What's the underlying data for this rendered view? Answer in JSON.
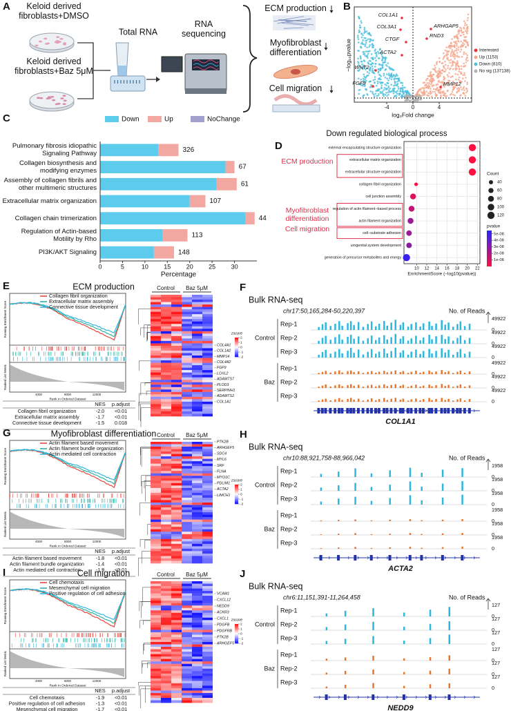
{
  "chart_data": [
    {
      "type": "bar",
      "orientation": "horizontal",
      "stacked": true,
      "panel_label": "C",
      "categories": [
        "Pulmonary fibrosis idiopathic Signaling Pathway",
        "Collagen biosynthesis and modifying enzymes",
        "Assembly of collagen fibrils and other multimeric structures",
        "Extracellular matrix organization",
        "Collagen chain trimerization",
        "Regulation of Actin-based Motility by Rho",
        "PI3K/AKT Signaling"
      ],
      "series": [
        {
          "name": "Down",
          "color": "#5ccbec",
          "values": [
            13,
            28,
            26,
            20,
            32.5,
            14,
            12
          ]
        },
        {
          "name": "Up",
          "color": "#f2a7a0",
          "values": [
            4.5,
            2,
            4.5,
            3.5,
            2,
            5.5,
            4.5
          ]
        },
        {
          "name": "NoChange",
          "color": "#a29fcc",
          "values": [
            0,
            0,
            0,
            0,
            0,
            0,
            0
          ]
        }
      ],
      "counts": [
        326,
        67,
        61,
        107,
        44,
        113,
        148
      ],
      "xlabel": "Percentage",
      "xlim": [
        0,
        35
      ],
      "xticks": [
        0,
        5,
        10,
        15,
        20,
        25,
        30
      ]
    },
    {
      "type": "dot",
      "panel_label": "D",
      "title": "Down regulated biological process",
      "categories": [
        "external encapsulating structure organization",
        "extracellular matrix organization",
        "extracellular structure organization",
        "collagen fibril organization",
        "cell junction assembly",
        "regulation of actin filament−based process",
        "actin filament organization",
        "cell−substrate adhesion",
        "urogenital system development",
        "generation of precursor metabolites and energy"
      ],
      "values": [
        21,
        21,
        21,
        9.9,
        9.3,
        9,
        8.8,
        8.5,
        8.5,
        8
      ],
      "sizes": [
        120,
        120,
        120,
        30,
        80,
        80,
        80,
        70,
        70,
        120
      ],
      "pvalues": [
        1e-10,
        1e-10,
        1e-10,
        1e-09,
        8e-09,
        1.5e-08,
        2.5e-08,
        2.5e-08,
        3e-08,
        5e-08
      ],
      "xlabel": "EnrichmentScore (−log10(pvalue))",
      "xlim": [
        7.5,
        22.5
      ],
      "xticks": [
        10,
        12,
        14,
        16,
        18,
        20,
        22
      ],
      "grid": true,
      "size_legend": {
        "title": "Count",
        "values": [
          40,
          60,
          80,
          100,
          120
        ]
      },
      "color_legend": {
        "title": "pvalue",
        "clim": [
          0,
          5.5e-08
        ],
        "colors": [
          "#ff1040",
          "#2424ff"
        ],
        "ticks": [
          {
            "value": 5e-08,
            "label": "5e-08"
          },
          {
            "value": 4e-08,
            "label": "4e-08"
          },
          {
            "value": 3e-08,
            "label": "3e-08"
          },
          {
            "value": 2e-08,
            "label": "2e-08"
          },
          {
            "value": 1e-08,
            "label": "1e-08"
          }
        ]
      },
      "annotations": [
        "ECM production",
        "Myofibroblast differentiation",
        "Cell migration"
      ]
    }
  ],
  "panels": {
    "A": {
      "label": "A",
      "groups": [
        "Keloid derived fibroblasts+DMSO",
        "Keloid derived fibroblasts+Baz 5μM"
      ],
      "step1": "Total RNA",
      "step2": "RNA sequencing",
      "outcomes": [
        "ECM production",
        "Myofibroblast differentiation",
        "Cell migration"
      ]
    },
    "B": {
      "label": "B",
      "ylabel": "−log₁₀pvalue",
      "xlabel": "log₂Fold change",
      "xticks": [
        -4,
        0,
        4
      ],
      "genes": [
        "COL1A1",
        "COL3A1",
        "CTGF",
        "ACTA2",
        "WNT2",
        "FGF9",
        "ARHGAP5",
        "RND3",
        "MMP12"
      ],
      "legend": [
        {
          "label": "Interested",
          "color": "#e8333a"
        },
        {
          "label": "Up (1153)",
          "color": "#f4a58a"
        },
        {
          "label": "Down (810)",
          "color": "#4dbfdc"
        },
        {
          "label": "No sig (137138)",
          "color": "#b0b0b0"
        }
      ]
    },
    "E": {
      "label": "E",
      "title": "ECM production",
      "gene_sets": [
        "Collagen fibril organization",
        "Extracellular matrix assembly",
        "Connective tissue development"
      ],
      "set_colors": [
        "#e8453c",
        "#2bb3a3",
        "#33b5e0"
      ],
      "ylabel_top": "Running Enrichment Score",
      "ylabel_bottom": "Ranked List Metric",
      "xlabel": "Rank in Ordered Dataset",
      "xticks": [
        4000,
        8000,
        12000
      ],
      "table": {
        "header": [
          "NES",
          "p.adjust"
        ],
        "rows": [
          [
            "Collagen fibril organization",
            "-2.0",
            "<0.01"
          ],
          [
            "Extracellular matrix assembly",
            "-1.7",
            "<0.01"
          ],
          [
            "Connective tissue development",
            "-1.5",
            "0.018"
          ]
        ]
      },
      "heatmap_groups": [
        "Control",
        "Baz 5μM"
      ],
      "colorbar_title": "zscore",
      "colorbar_ticks": [
        2,
        1,
        0,
        -1,
        -2
      ],
      "genes": [
        "COL4A1",
        "COL1A2",
        "MMP14",
        "COL4A2",
        "FGF9",
        "LOXL2",
        "ADAMTS7",
        "PLOD3",
        "SERPINH1",
        "ADAMTS2",
        "COL1A1"
      ]
    },
    "F": {
      "label": "F",
      "title": "Bulk RNA-seq",
      "locus": "chr17:50,165,284-50,220,397",
      "reads_label": "No. of Reads",
      "groups": [
        "Control",
        "Baz"
      ],
      "reps": [
        "Rep-1",
        "Rep-2",
        "Rep-3"
      ],
      "scale_max": 49922,
      "scale_min": 0,
      "gene": "COL1A1"
    },
    "G": {
      "label": "G",
      "title": "Myofibroblast differentiation",
      "gene_sets": [
        "Actin filament based movement",
        "Actin filament bundle organization",
        "Actin mediated cell contraction"
      ],
      "set_colors": [
        "#e8453c",
        "#2bb3a3",
        "#33b5e0"
      ],
      "ylabel_top": "Running Enrichment Score",
      "ylabel_bottom": "Ranked List Metric",
      "xlabel": "Rank in Ordered Dataset",
      "xticks": [
        4000,
        8000,
        12000
      ],
      "table": {
        "header": [
          "NES",
          "p.adjust"
        ],
        "rows": [
          [
            "Actin filament based movement",
            "-1.8",
            "<0.01"
          ],
          [
            "Actin filament bundle organization",
            "-1.4",
            "<0.01"
          ],
          [
            "Actin mediated cell contraction",
            "-1.9",
            "<0.01"
          ]
        ]
      },
      "heatmap_groups": [
        "Control",
        "Baz 5μM"
      ],
      "colorbar_title": "zscore",
      "colorbar_ticks": [
        2,
        1,
        0,
        -1,
        -2
      ],
      "genes": [
        "PTK2B",
        "ARHGEF5",
        "SDC4",
        "MYL6",
        "SRF",
        "FLNA",
        "MYO1C",
        "PDLIM1",
        "ACTA2",
        "LIMCH1"
      ]
    },
    "H": {
      "label": "H",
      "title": "Bulk RNA-seq",
      "locus": "chr10:88,921,758-88,966,042",
      "reads_label": "No. of Reads",
      "groups": [
        "Control",
        "Baz"
      ],
      "reps": [
        "Rep-1",
        "Rep-2",
        "Rep-3"
      ],
      "scale_max": 1958,
      "scale_min": 0,
      "gene": "ACTA2"
    },
    "I": {
      "label": "I",
      "title": "Cell migration",
      "gene_sets": [
        "Cell chemotaxis",
        "Mesenchymal cell migration",
        "Positive regulation of cell adhesion"
      ],
      "set_colors": [
        "#e8453c",
        "#2bb3a3",
        "#33b5e0"
      ],
      "ylabel_top": "Running Enrichment Score",
      "ylabel_bottom": "Ranked List Metric",
      "xlabel": "Rank in Ordered Dataset",
      "xticks": [
        4000,
        8000,
        12000
      ],
      "table": {
        "header": [
          "NES",
          "p.adjust"
        ],
        "rows": [
          [
            "Cell chemotaxis",
            "-1.9",
            "<0.01"
          ],
          [
            "Positive regulation of cell adhesion",
            "-1.3",
            "<0.01"
          ],
          [
            "Mesenchymal cell migration",
            "-1.7",
            "<0.01"
          ]
        ]
      },
      "heatmap_groups": [
        "Control",
        "Baz 5μM"
      ],
      "colorbar_title": "zscore",
      "colorbar_ticks": [
        2,
        1,
        0,
        -1,
        -2
      ],
      "genes": [
        "VCAM1",
        "CXCL12",
        "NEDD9",
        "ACKR3",
        "CXCL1",
        "PDGFB",
        "PDGFRB",
        "PTK2B",
        "ARHGEF5"
      ]
    },
    "J": {
      "label": "J",
      "title": "Bulk RNA-seq",
      "locus": "chr6:11,151,391-11,264,458",
      "reads_label": "No. of Reads",
      "groups": [
        "Control",
        "Baz"
      ],
      "reps": [
        "Rep-1",
        "Rep-2",
        "Rep-3"
      ],
      "scale_max": 127,
      "scale_min": 0,
      "gene": "NEDD9"
    }
  }
}
